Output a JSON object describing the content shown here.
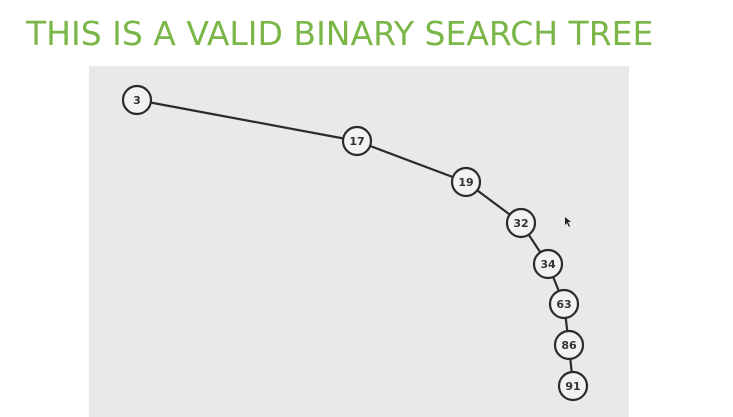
{
  "title": "THIS IS A VALID BINARY SEARCH TREE",
  "colors": {
    "title": "#7ab648",
    "panel": "#e9e9e9",
    "node_stroke": "#2b2b2b",
    "node_fill": "#f2f2f2",
    "edge": "#2b2b2b",
    "label": "#333333"
  },
  "tree": {
    "nodes": [
      {
        "id": "n3",
        "label": "3"
      },
      {
        "id": "n17",
        "label": "17"
      },
      {
        "id": "n19",
        "label": "19"
      },
      {
        "id": "n32",
        "label": "32"
      },
      {
        "id": "n34",
        "label": "34"
      },
      {
        "id": "n63",
        "label": "63"
      },
      {
        "id": "n86",
        "label": "86"
      },
      {
        "id": "n91",
        "label": "91"
      }
    ],
    "edges": [
      [
        "n3",
        "n17"
      ],
      [
        "n17",
        "n19"
      ],
      [
        "n19",
        "n32"
      ],
      [
        "n32",
        "n34"
      ],
      [
        "n34",
        "n63"
      ],
      [
        "n63",
        "n86"
      ],
      [
        "n86",
        "n91"
      ]
    ]
  }
}
